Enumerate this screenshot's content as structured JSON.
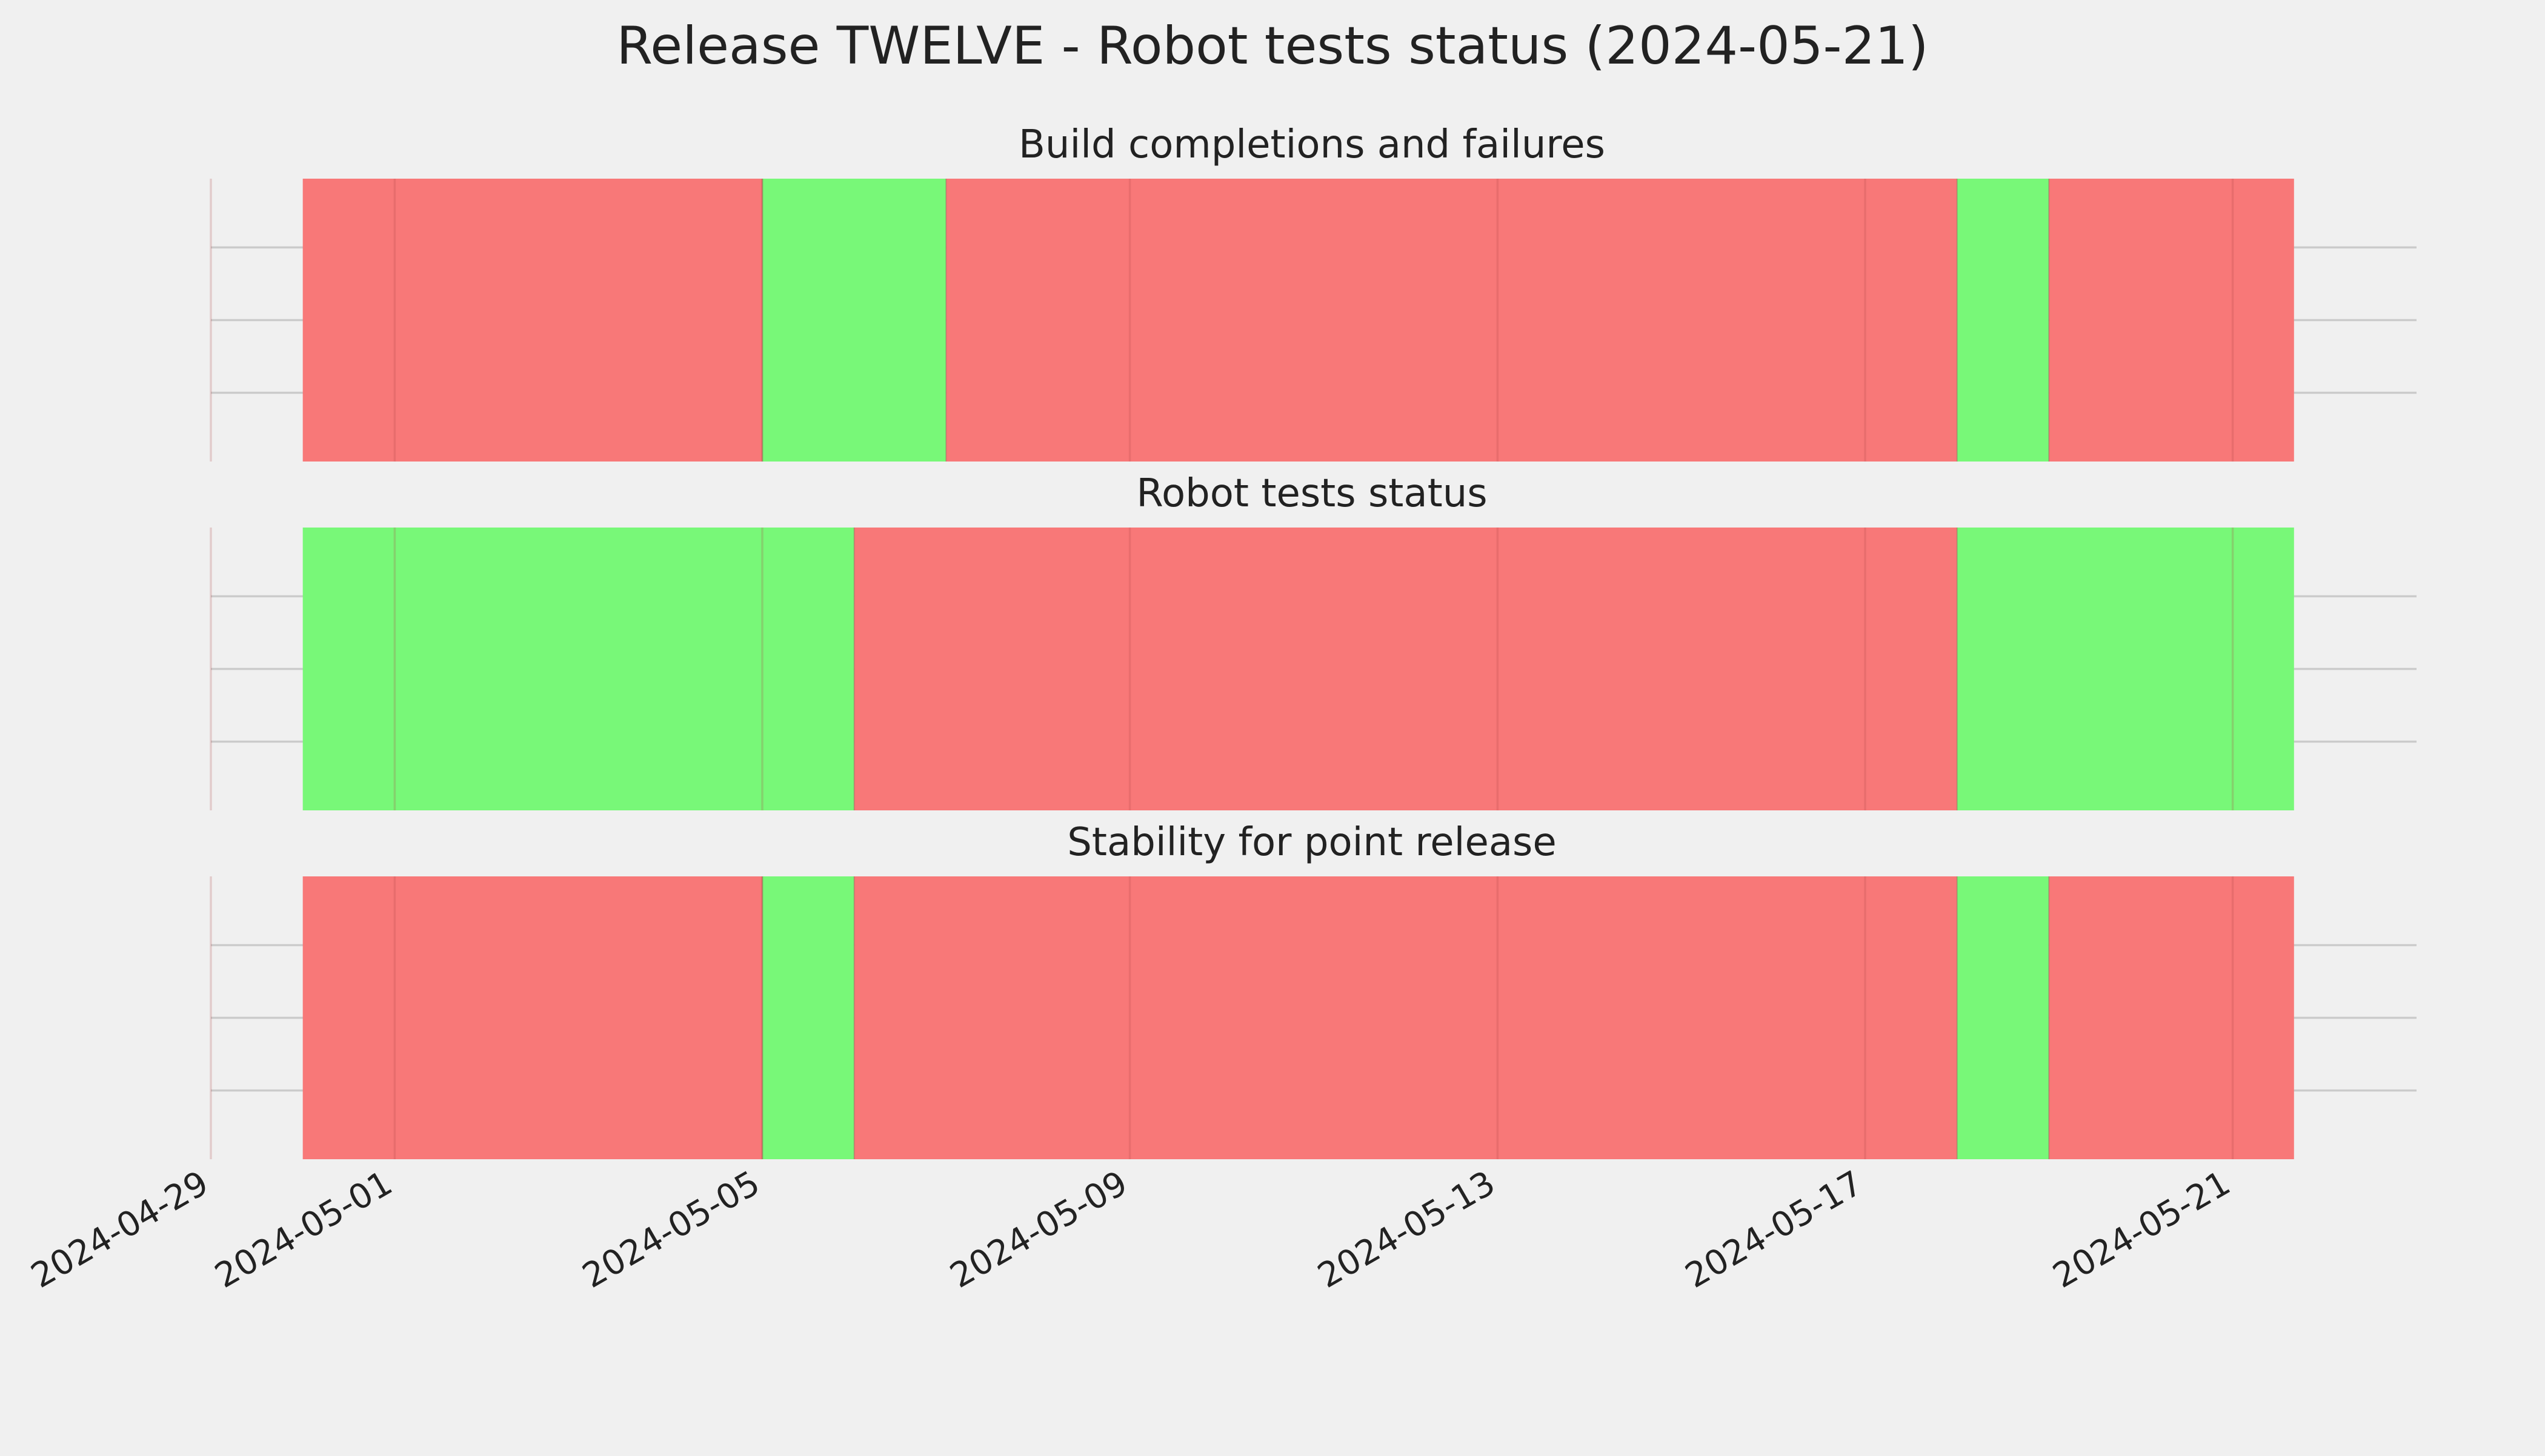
{
  "chart_data": {
    "type": "timeline",
    "title": "Release TWELVE - Robot tests status (2024-05-21)",
    "x_axis": {
      "xlim": [
        "2024-04-29",
        "2024-05-23"
      ],
      "ticks": [
        "2024-04-29",
        "2024-05-01",
        "2024-05-05",
        "2024-05-09",
        "2024-05-13",
        "2024-05-17",
        "2024-05-21"
      ],
      "tick_rotation": "slanted"
    },
    "grid": true,
    "y_ticks_shown": false,
    "status_colors": {
      "fail": "#f87878",
      "pass": "#78f878"
    },
    "panels": [
      {
        "title": "Build completions and failures",
        "segments": [
          {
            "start": "2024-04-30",
            "end": "2024-05-05",
            "status": "fail"
          },
          {
            "start": "2024-05-05",
            "end": "2024-05-07",
            "status": "pass"
          },
          {
            "start": "2024-05-07",
            "end": "2024-05-18",
            "status": "fail"
          },
          {
            "start": "2024-05-18",
            "end": "2024-05-19",
            "status": "pass"
          },
          {
            "start": "2024-05-19",
            "end": "2024-05-21T16:00",
            "status": "fail"
          }
        ]
      },
      {
        "title": "Robot tests status",
        "segments": [
          {
            "start": "2024-04-30",
            "end": "2024-05-06",
            "status": "pass"
          },
          {
            "start": "2024-05-06",
            "end": "2024-05-18",
            "status": "fail"
          },
          {
            "start": "2024-05-18",
            "end": "2024-05-21T16:00",
            "status": "pass"
          }
        ]
      },
      {
        "title": "Stability for point release",
        "segments": [
          {
            "start": "2024-04-30",
            "end": "2024-05-05",
            "status": "fail"
          },
          {
            "start": "2024-05-05",
            "end": "2024-05-06",
            "status": "pass"
          },
          {
            "start": "2024-05-06",
            "end": "2024-05-18",
            "status": "fail"
          },
          {
            "start": "2024-05-18",
            "end": "2024-05-19",
            "status": "pass"
          },
          {
            "start": "2024-05-19",
            "end": "2024-05-21T16:00",
            "status": "fail"
          }
        ]
      }
    ]
  }
}
